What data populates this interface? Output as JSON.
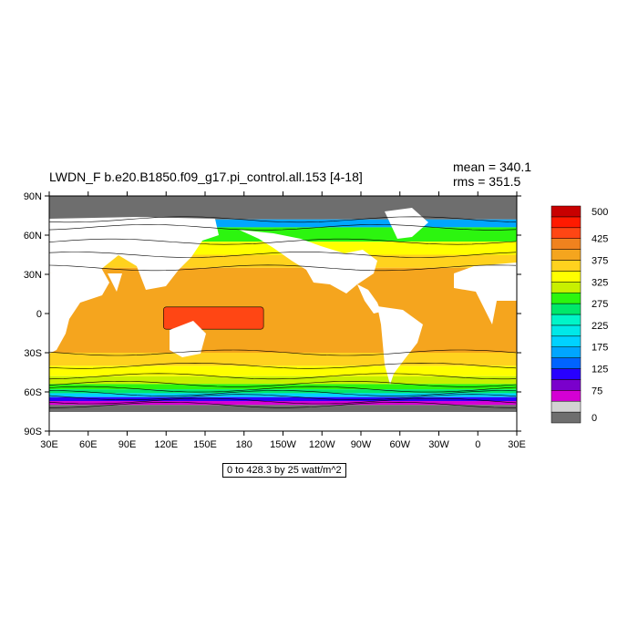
{
  "title": "LWDN_F b.e20.B1850.f09_g17.pi_control.all.153 [4-18]",
  "stats": {
    "mean": "mean = 340.1",
    "rms": "rms = 351.5"
  },
  "range_label": "0 to 428.3 by 25 watt/m^2",
  "map": {
    "lon_range": [
      30,
      390
    ],
    "lat_range": [
      -90,
      90
    ],
    "x_tick_labels": [
      "30E",
      "60E",
      "90E",
      "120E",
      "150E",
      "180",
      "150W",
      "120W",
      "90W",
      "60W",
      "30W",
      "0",
      "30E"
    ],
    "y_tick_labels": [
      "90N",
      "60N",
      "30N",
      "0",
      "30S",
      "60S",
      "90S"
    ],
    "ocean_bands": [
      {
        "lat_max": 90,
        "lat_min": 72,
        "value": 0
      },
      {
        "lat_max": 72,
        "lat_min": 66,
        "value": 150
      },
      {
        "lat_max": 66,
        "lat_min": 55,
        "value": 275
      },
      {
        "lat_max": 55,
        "lat_min": 45,
        "value": 325
      },
      {
        "lat_max": 45,
        "lat_min": 35,
        "value": 350
      },
      {
        "lat_max": 35,
        "lat_min": -30,
        "value": 375
      },
      {
        "lat_max": -30,
        "lat_min": -40,
        "value": 350
      },
      {
        "lat_max": -40,
        "lat_min": -48,
        "value": 325
      },
      {
        "lat_max": -48,
        "lat_min": -54,
        "value": 300
      },
      {
        "lat_max": -54,
        "lat_min": -58,
        "value": 275
      },
      {
        "lat_max": -58,
        "lat_min": -61,
        "value": 250
      },
      {
        "lat_max": -61,
        "lat_min": -64,
        "value": 175
      },
      {
        "lat_max": -64,
        "lat_min": -67,
        "value": 100
      },
      {
        "lat_max": -67,
        "lat_min": -70,
        "value": 50
      },
      {
        "lat_max": -70,
        "lat_min": -90,
        "value": 0
      }
    ],
    "warm_pool": {
      "lon_min": 118,
      "lon_max": 195,
      "lat_min": -12,
      "lat_max": 5,
      "value": 425
    }
  },
  "colorbar": {
    "levels": [
      0,
      25,
      50,
      75,
      100,
      125,
      150,
      175,
      200,
      225,
      250,
      275,
      300,
      325,
      350,
      375,
      400,
      425,
      450,
      475,
      500
    ],
    "colors": [
      "#6e6e6e",
      "#d2d2d2",
      "#d400d4",
      "#7a00cc",
      "#2800ff",
      "#0064ff",
      "#00a6ff",
      "#00d2ff",
      "#00e8e8",
      "#00f5c8",
      "#00e86a",
      "#2cf50f",
      "#c8f000",
      "#ffff00",
      "#ffd21e",
      "#f5a51e",
      "#f0821e",
      "#ff4614",
      "#ff1a00",
      "#c80000"
    ],
    "labels": [
      {
        "value": 0,
        "text": "0"
      },
      {
        "value": 75,
        "text": "75"
      },
      {
        "value": 125,
        "text": "125"
      },
      {
        "value": 175,
        "text": "175"
      },
      {
        "value": 225,
        "text": "225"
      },
      {
        "value": 275,
        "text": "275"
      },
      {
        "value": 325,
        "text": "325"
      },
      {
        "value": 375,
        "text": "375"
      },
      {
        "value": 425,
        "text": "425"
      },
      {
        "value": 500,
        "text": "500"
      }
    ]
  }
}
